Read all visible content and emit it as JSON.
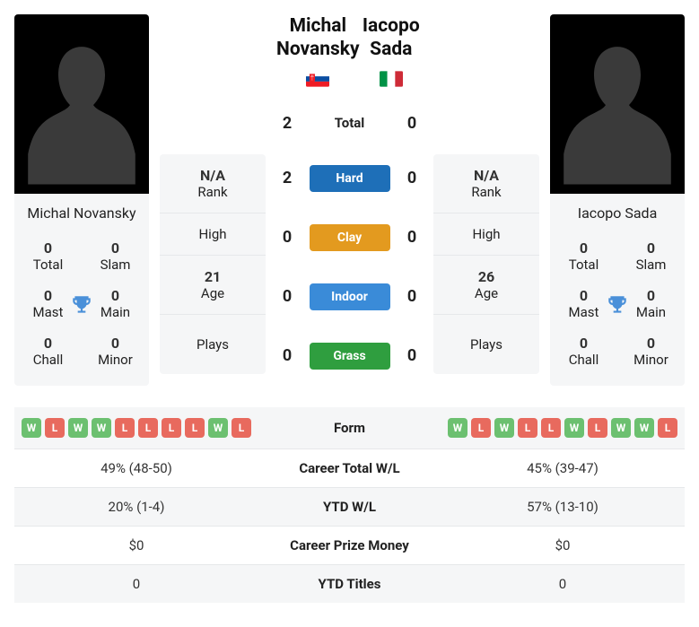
{
  "colors": {
    "win": "#6cc070",
    "loss": "#e86a5e",
    "hard": "#1e6fb8",
    "clay": "#e39a1f",
    "indoor": "#3a8bd8",
    "grass": "#2f9e3f",
    "trophy": "#4a90d9",
    "card_bg": "#f5f6f7",
    "border": "#e6e8ea"
  },
  "h2h": {
    "rows": [
      {
        "left": "2",
        "label": "Total",
        "right": "0",
        "pill": false
      },
      {
        "left": "2",
        "label": "Hard",
        "right": "0",
        "pill": true,
        "color_key": "hard"
      },
      {
        "left": "0",
        "label": "Clay",
        "right": "0",
        "pill": true,
        "color_key": "clay"
      },
      {
        "left": "0",
        "label": "Indoor",
        "right": "0",
        "pill": true,
        "color_key": "indoor"
      },
      {
        "left": "0",
        "label": "Grass",
        "right": "0",
        "pill": true,
        "color_key": "grass"
      }
    ]
  },
  "sideStats": {
    "labels": {
      "rank": "Rank",
      "high": "High",
      "age": "Age",
      "plays": "Plays"
    }
  },
  "players": {
    "left": {
      "name": "Michal Novansky",
      "nationality": "Slovakia",
      "rank": "N/A",
      "high": "",
      "age": "21",
      "plays": "",
      "titles": {
        "total": "0",
        "slam": "0",
        "mast": "0",
        "main": "0",
        "chall": "0",
        "minor": "0"
      }
    },
    "right": {
      "name": "Iacopo Sada",
      "nationality": "Italy",
      "rank": "N/A",
      "high": "",
      "age": "26",
      "plays": "",
      "titles": {
        "total": "0",
        "slam": "0",
        "mast": "0",
        "main": "0",
        "chall": "0",
        "minor": "0"
      }
    }
  },
  "titleLabels": {
    "total": "Total",
    "slam": "Slam",
    "mast": "Mast",
    "main": "Main",
    "chall": "Chall",
    "minor": "Minor"
  },
  "form": {
    "left": [
      "W",
      "L",
      "W",
      "W",
      "L",
      "L",
      "L",
      "L",
      "W",
      "L"
    ],
    "right": [
      "W",
      "L",
      "W",
      "L",
      "L",
      "W",
      "L",
      "W",
      "W",
      "L"
    ]
  },
  "statsTable": {
    "rows": [
      {
        "label": "Form",
        "left_form": true,
        "right_form": true
      },
      {
        "label": "Career Total W/L",
        "left": "49% (48-50)",
        "right": "45% (39-47)"
      },
      {
        "label": "YTD W/L",
        "left": "20% (1-4)",
        "right": "57% (13-10)"
      },
      {
        "label": "Career Prize Money",
        "left": "$0",
        "right": "$0"
      },
      {
        "label": "YTD Titles",
        "left": "0",
        "right": "0"
      }
    ]
  }
}
